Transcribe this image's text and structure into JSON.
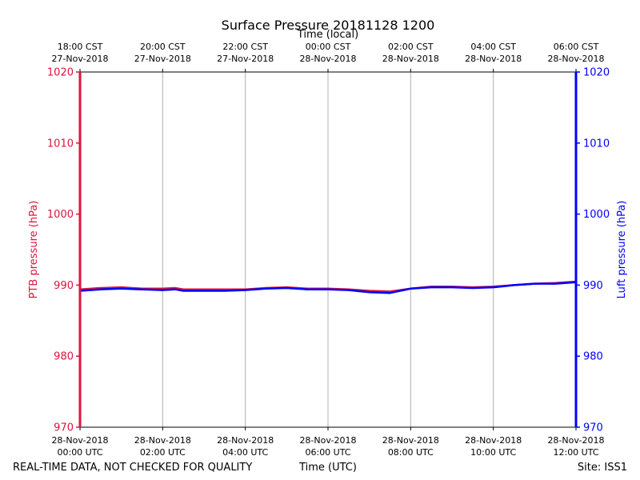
{
  "chart_data": {
    "type": "line",
    "title": "Surface Pressure 20181128 1200",
    "xlabel_bottom": "Time (UTC)",
    "xlabel_top": "Time (local)",
    "ylabel_left": "PTB pressure (hPa)",
    "ylabel_right": "Luft pressure (hPa)",
    "footer_left": "REAL-TIME DATA, NOT CHECKED FOR QUALITY",
    "footer_right": "Site: ISS1",
    "ylim": [
      970,
      1020
    ],
    "yticks": [
      970,
      980,
      990,
      1000,
      1010,
      1020
    ],
    "xlim_hours": [
      0,
      12
    ],
    "grid": "vertical",
    "bottom_ticks": [
      {
        "h": 0,
        "line1": "28-Nov-2018",
        "line2": "00:00 UTC"
      },
      {
        "h": 2,
        "line1": "28-Nov-2018",
        "line2": "02:00 UTC"
      },
      {
        "h": 4,
        "line1": "28-Nov-2018",
        "line2": "04:00 UTC"
      },
      {
        "h": 6,
        "line1": "28-Nov-2018",
        "line2": "06:00 UTC"
      },
      {
        "h": 8,
        "line1": "28-Nov-2018",
        "line2": "08:00 UTC"
      },
      {
        "h": 10,
        "line1": "28-Nov-2018",
        "line2": "10:00 UTC"
      },
      {
        "h": 12,
        "line1": "28-Nov-2018",
        "line2": "12:00 UTC"
      }
    ],
    "top_ticks": [
      {
        "h": 0,
        "line1": "18:00 CST",
        "line2": "27-Nov-2018"
      },
      {
        "h": 2,
        "line1": "20:00 CST",
        "line2": "27-Nov-2018"
      },
      {
        "h": 4,
        "line1": "22:00 CST",
        "line2": "27-Nov-2018"
      },
      {
        "h": 6,
        "line1": "00:00 CST",
        "line2": "28-Nov-2018"
      },
      {
        "h": 8,
        "line1": "02:00 CST",
        "line2": "28-Nov-2018"
      },
      {
        "h": 10,
        "line1": "04:00 CST",
        "line2": "28-Nov-2018"
      },
      {
        "h": 12,
        "line1": "06:00 CST",
        "line2": "28-Nov-2018"
      }
    ],
    "colors": {
      "ptb": "#dc143c",
      "luft": "#0000ff"
    },
    "series": [
      {
        "name": "PTB pressure (hPa)",
        "axis": "left",
        "x": [
          0,
          0.5,
          1,
          1.5,
          2,
          2.3,
          2.5,
          3,
          3.5,
          4,
          4.5,
          5,
          5.5,
          6,
          6.5,
          7,
          7.5,
          8,
          8.5,
          9,
          9.5,
          10,
          10.5,
          11,
          11.5,
          12
        ],
        "y": [
          989.4,
          989.6,
          989.7,
          989.5,
          989.5,
          989.6,
          989.4,
          989.4,
          989.4,
          989.4,
          989.6,
          989.7,
          989.5,
          989.5,
          989.4,
          989.2,
          989.1,
          989.5,
          989.8,
          989.8,
          989.7,
          989.8,
          990.0,
          990.2,
          990.3,
          990.5
        ]
      },
      {
        "name": "Luft pressure (hPa)",
        "axis": "right",
        "x": [
          0,
          0.5,
          1,
          1.5,
          2,
          2.3,
          2.5,
          3,
          3.5,
          4,
          4.5,
          5,
          5.5,
          6,
          6.5,
          7,
          7.5,
          8,
          8.5,
          9,
          9.5,
          10,
          10.5,
          11,
          11.5,
          12
        ],
        "y": [
          989.2,
          989.4,
          989.5,
          989.4,
          989.3,
          989.4,
          989.2,
          989.2,
          989.2,
          989.3,
          989.5,
          989.6,
          989.4,
          989.4,
          989.3,
          989.0,
          988.9,
          989.5,
          989.7,
          989.7,
          989.6,
          989.7,
          990.0,
          990.2,
          990.2,
          990.4
        ]
      }
    ]
  }
}
